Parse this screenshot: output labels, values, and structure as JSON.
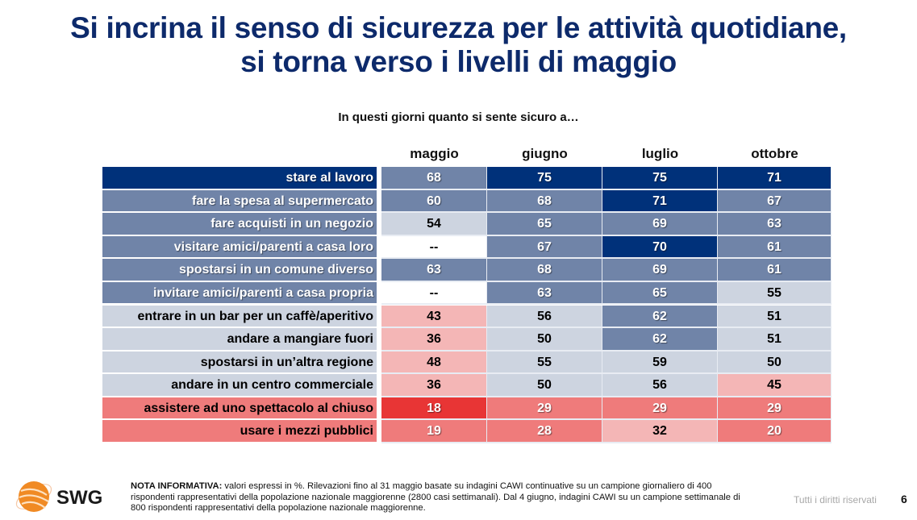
{
  "title_line1": "Si incrina il senso di sicurezza per le attività quotidiane,",
  "title_line2": "si torna verso i livelli di maggio",
  "colors": {
    "title": "#0d2a6b",
    "navy": "#00317a",
    "slate": "#7084a8",
    "light_blue": "#cdd4e0",
    "white": "#ffffff",
    "pale_pink": "#f4b6b6",
    "salmon": "#ef7b7b",
    "red": "#e83535"
  },
  "chart_data": {
    "type": "table",
    "title": "In questi giorni quanto si sente sicuro a…",
    "unit": "%",
    "columns": [
      "maggio",
      "giugno",
      "luglio",
      "ottobre"
    ],
    "rows": [
      {
        "label": "stare al lavoro",
        "label_style": "navy",
        "values": [
          "68",
          "75",
          "75",
          "71"
        ],
        "styles": [
          "slate",
          "navy",
          "navy",
          "navy"
        ]
      },
      {
        "label": "fare la spesa al supermercato",
        "label_style": "slate",
        "values": [
          "60",
          "68",
          "71",
          "67"
        ],
        "styles": [
          "slate",
          "slate",
          "navy",
          "slate"
        ]
      },
      {
        "label": "fare acquisti in un negozio",
        "label_style": "slate",
        "values": [
          "54",
          "65",
          "69",
          "63"
        ],
        "styles": [
          "light_blue",
          "slate",
          "slate",
          "slate"
        ]
      },
      {
        "label": "visitare amici/parenti a casa loro",
        "label_style": "slate",
        "values": [
          "--",
          "67",
          "70",
          "61"
        ],
        "styles": [
          "white",
          "slate",
          "navy",
          "slate"
        ]
      },
      {
        "label": "spostarsi in un comune diverso",
        "label_style": "slate",
        "values": [
          "63",
          "68",
          "69",
          "61"
        ],
        "styles": [
          "slate",
          "slate",
          "slate",
          "slate"
        ]
      },
      {
        "label": "invitare amici/parenti a casa propria",
        "label_style": "slate",
        "values": [
          "--",
          "63",
          "65",
          "55"
        ],
        "styles": [
          "white",
          "slate",
          "slate",
          "light_blue"
        ]
      },
      {
        "label": "entrare in un bar per un caffè/aperitivo",
        "label_style": "light_blue",
        "values": [
          "43",
          "56",
          "62",
          "51"
        ],
        "styles": [
          "pale_pink",
          "light_blue",
          "slate",
          "light_blue"
        ]
      },
      {
        "label": "andare a mangiare fuori",
        "label_style": "light_blue",
        "values": [
          "36",
          "50",
          "62",
          "51"
        ],
        "styles": [
          "pale_pink",
          "light_blue",
          "slate",
          "light_blue"
        ]
      },
      {
        "label": "spostarsi in un’altra regione",
        "label_style": "light_blue",
        "values": [
          "48",
          "55",
          "59",
          "50"
        ],
        "styles": [
          "pale_pink",
          "light_blue",
          "light_blue",
          "light_blue"
        ]
      },
      {
        "label": "andare in un centro commerciale",
        "label_style": "light_blue",
        "values": [
          "36",
          "50",
          "56",
          "45"
        ],
        "styles": [
          "pale_pink",
          "light_blue",
          "light_blue",
          "pale_pink"
        ]
      },
      {
        "label": "assistere ad uno spettacolo al chiuso",
        "label_style": "salmon",
        "values": [
          "18",
          "29",
          "29",
          "29"
        ],
        "styles": [
          "red",
          "salmon",
          "salmon",
          "salmon"
        ]
      },
      {
        "label": "usare i mezzi pubblici",
        "label_style": "salmon",
        "values": [
          "19",
          "28",
          "32",
          "20"
        ],
        "styles": [
          "salmon",
          "salmon",
          "pale_pink",
          "salmon"
        ]
      }
    ]
  },
  "footer": {
    "logo_text": "SWG",
    "note_label": "NOTA INFORMATIVA:",
    "note_text": " valori espressi in %. Rilevazioni fino al 31 maggio basate su indagini CAWI continuative su un campione giornaliero di 400 rispondenti rappresentativi della popolazione nazionale maggiorenne (2800 casi settimanali). Dal 4 giugno, indagini CAWI su un campione settimanale di 800 rispondenti rappresentativi della popolazione nazionale maggiorenne.",
    "rights": "Tutti i diritti riservati",
    "page_number": "6"
  }
}
